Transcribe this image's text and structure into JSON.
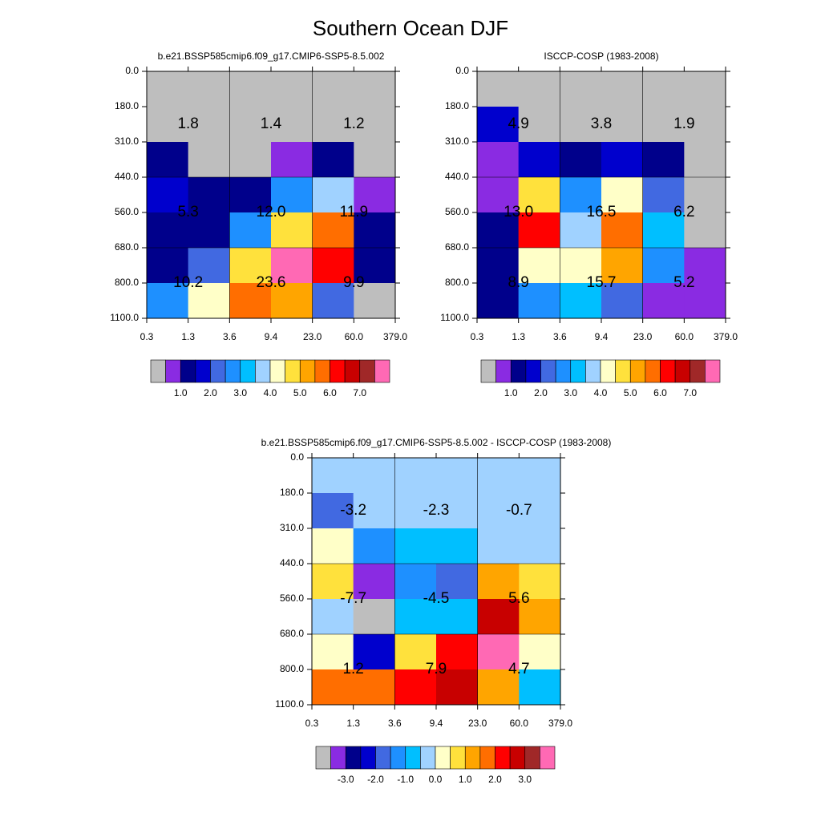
{
  "title": "Southern Ocean DJF",
  "chart_data": [
    {
      "type": "heatmap",
      "title": "b.e21.BSSP585cmip6.f09_g17.CMIP6-SSP5-8.5.002",
      "x_edges": [
        "0.3",
        "1.3",
        "3.6",
        "9.4",
        "23.0",
        "60.0",
        "379.0"
      ],
      "y_edges": [
        "0.0",
        "180.0",
        "310.0",
        "440.0",
        "560.0",
        "680.0",
        "800.0",
        "1100.0"
      ],
      "values": [
        [
          0.2,
          0.2,
          0.2,
          0.2,
          0.2,
          0.2
        ],
        [
          0.2,
          0.2,
          0.2,
          0.2,
          0.2,
          0.2
        ],
        [
          1.2,
          0.2,
          0.2,
          0.8,
          1.2,
          0.2
        ],
        [
          1.8,
          1.2,
          1.2,
          2.8,
          3.8,
          0.8
        ],
        [
          1.2,
          1.2,
          2.8,
          4.8,
          5.8,
          1.2
        ],
        [
          1.2,
          2.2,
          4.8,
          7.8,
          6.2,
          1.2
        ],
        [
          2.8,
          4.2,
          5.8,
          5.2,
          2.2,
          0.2
        ]
      ],
      "annotations": [
        [
          "1.8",
          "1.4",
          "1.2"
        ],
        [
          "5.3",
          "12.0",
          "11.9"
        ],
        [
          "10.2",
          "23.6",
          "9.9"
        ]
      ],
      "colorbar": {
        "colors": [
          "#bebebe",
          "#8a2be2",
          "#00008b",
          "#0000cd",
          "#4169e1",
          "#1e90ff",
          "#00bfff",
          "#a0d2ff",
          "#ffffc8",
          "#ffe13c",
          "#ffa500",
          "#ff6e00",
          "#ff0000",
          "#c80000",
          "#a02828",
          "#ff69b4"
        ],
        "levels": [
          0.5,
          1,
          1.5,
          2,
          2.5,
          3,
          3.5,
          4,
          4.5,
          5,
          5.5,
          6,
          6.5,
          7,
          7.5
        ],
        "ticks": [
          {
            "value": 1,
            "label": "1.0"
          },
          {
            "value": 2,
            "label": "2.0"
          },
          {
            "value": 3,
            "label": "3.0"
          },
          {
            "value": 4,
            "label": "4.0"
          },
          {
            "value": 5,
            "label": "5.0"
          },
          {
            "value": 6,
            "label": "6.0"
          },
          {
            "value": 7,
            "label": "7.0"
          }
        ]
      }
    },
    {
      "type": "heatmap",
      "title": "ISCCP-COSP (1983-2008)",
      "x_edges": [
        "0.3",
        "1.3",
        "3.6",
        "9.4",
        "23.0",
        "60.0",
        "379.0"
      ],
      "y_edges": [
        "0.0",
        "180.0",
        "310.0",
        "440.0",
        "560.0",
        "680.0",
        "800.0",
        "1100.0"
      ],
      "values": [
        [
          0.2,
          0.2,
          0.2,
          0.2,
          0.2,
          0.2
        ],
        [
          1.8,
          0.2,
          0.2,
          0.2,
          0.2,
          0.2
        ],
        [
          0.8,
          1.8,
          1.2,
          1.8,
          1.2,
          0.2
        ],
        [
          0.8,
          4.8,
          2.8,
          4.2,
          2.2,
          0.2
        ],
        [
          1.2,
          6.2,
          3.8,
          5.8,
          3.2,
          0.2
        ],
        [
          1.2,
          4.2,
          4.2,
          5.2,
          2.8,
          0.8
        ],
        [
          1.2,
          2.8,
          3.2,
          2.2,
          0.8,
          0.8
        ]
      ],
      "annotations": [
        [
          "4.9",
          "3.8",
          "1.9"
        ],
        [
          "13.0",
          "16.5",
          "6.2"
        ],
        [
          "8.9",
          "15.7",
          "5.2"
        ]
      ],
      "colorbar": {
        "colors": [
          "#bebebe",
          "#8a2be2",
          "#00008b",
          "#0000cd",
          "#4169e1",
          "#1e90ff",
          "#00bfff",
          "#a0d2ff",
          "#ffffc8",
          "#ffe13c",
          "#ffa500",
          "#ff6e00",
          "#ff0000",
          "#c80000",
          "#a02828",
          "#ff69b4"
        ],
        "levels": [
          0.5,
          1,
          1.5,
          2,
          2.5,
          3,
          3.5,
          4,
          4.5,
          5,
          5.5,
          6,
          6.5,
          7,
          7.5
        ],
        "ticks": [
          {
            "value": 1,
            "label": "1.0"
          },
          {
            "value": 2,
            "label": "2.0"
          },
          {
            "value": 3,
            "label": "3.0"
          },
          {
            "value": 4,
            "label": "4.0"
          },
          {
            "value": 5,
            "label": "5.0"
          },
          {
            "value": 6,
            "label": "6.0"
          },
          {
            "value": 7,
            "label": "7.0"
          }
        ]
      }
    },
    {
      "type": "heatmap",
      "title": "b.e21.BSSP585cmip6.f09_g17.CMIP6-SSP5-8.5.002 - ISCCP-COSP (1983-2008)",
      "x_edges": [
        "0.3",
        "1.3",
        "3.6",
        "9.4",
        "23.0",
        "60.0",
        "379.0"
      ],
      "y_edges": [
        "0.0",
        "180.0",
        "310.0",
        "440.0",
        "560.0",
        "680.0",
        "800.0",
        "1100.0"
      ],
      "values": [
        [
          -0.2,
          -0.2,
          -0.2,
          -0.2,
          -0.2,
          -0.2
        ],
        [
          -1.8,
          -0.2,
          -0.2,
          -0.2,
          -0.2,
          -0.2
        ],
        [
          0.2,
          -1.2,
          -0.8,
          -0.8,
          -0.2,
          -0.2
        ],
        [
          0.8,
          -3.2,
          -1.2,
          -1.8,
          1.2,
          0.8
        ],
        [
          -0.2,
          -3.8,
          -0.8,
          -0.8,
          2.8,
          1.2
        ],
        [
          0.2,
          -2.2,
          0.8,
          2.2,
          3.8,
          0.2
        ],
        [
          1.8,
          1.8,
          2.2,
          2.8,
          1.2,
          -0.8
        ]
      ],
      "annotations": [
        [
          "-3.2",
          "-2.3",
          "-0.7"
        ],
        [
          "-7.7",
          "-4.5",
          "5.6"
        ],
        [
          "1.2",
          "7.9",
          "4.7"
        ]
      ],
      "colorbar": {
        "colors": [
          "#bebebe",
          "#8a2be2",
          "#00008b",
          "#0000cd",
          "#4169e1",
          "#1e90ff",
          "#00bfff",
          "#a0d2ff",
          "#ffffc8",
          "#ffe13c",
          "#ffa500",
          "#ff6e00",
          "#ff0000",
          "#c80000",
          "#a02828",
          "#ff69b4"
        ],
        "levels": [
          -3.5,
          -3,
          -2.5,
          -2,
          -1.5,
          -1,
          -0.5,
          0,
          0.5,
          1,
          1.5,
          2,
          2.5,
          3,
          3.5
        ],
        "ticks": [
          {
            "value": -3,
            "label": "-3.0"
          },
          {
            "value": -2,
            "label": "-2.0"
          },
          {
            "value": -1,
            "label": "-1.0"
          },
          {
            "value": 0,
            "label": "0.0"
          },
          {
            "value": 1,
            "label": "1.0"
          },
          {
            "value": 2,
            "label": "2.0"
          },
          {
            "value": 3,
            "label": "3.0"
          }
        ]
      }
    }
  ]
}
